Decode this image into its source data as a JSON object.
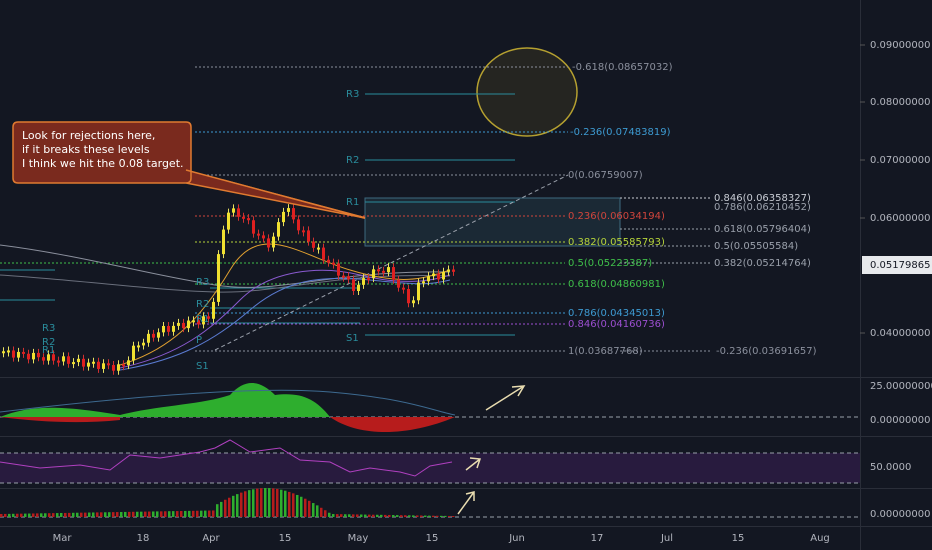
{
  "annotation": {
    "lines": [
      "Look for rejections here,",
      "if it breaks these levels",
      "I think we hit the 0.08 target."
    ]
  },
  "price_axis": {
    "labels": [
      "0.09000000",
      "0.08000000",
      "0.07000000",
      "0.06000000",
      "0.04000000"
    ],
    "last_price": "0.05179865"
  },
  "levels": [
    {
      "text": "-0.618(0.08657032)",
      "color": "#8a8f9c"
    },
    {
      "text": "R3",
      "color": "#2a8c9c"
    },
    {
      "text": "-0.236(0.07483819)",
      "color": "#3d9ad1"
    },
    {
      "text": "R2",
      "color": "#2a8c9c"
    },
    {
      "text": "0(0.06759007)",
      "color": "#8a8f9c"
    },
    {
      "text": "R1",
      "color": "#2a8c9c"
    },
    {
      "text": "0.846(0.06358327)",
      "color": "#c8ccd4"
    },
    {
      "text": "0.786(0.06210452)",
      "color": "#9aa0ab"
    },
    {
      "text": "0.236(0.06034194)",
      "color": "#d0453c"
    },
    {
      "text": "0.618(0.05796404)",
      "color": "#9aa0ab"
    },
    {
      "text": "0.382(0.05585793)",
      "color": "#b5d33a"
    },
    {
      "text": "0.5(0.05505584)",
      "color": "#9aa0ab"
    },
    {
      "text": "0.5(0.05223387)",
      "color": "#3fbf4a"
    },
    {
      "text": "0.382(0.05214764)",
      "color": "#9aa0ab"
    },
    {
      "text": "0.618(0.04860981)",
      "color": "#3fbf4a"
    },
    {
      "text": "0.786(0.04345013)",
      "color": "#3d9ad1"
    },
    {
      "text": "0.846(0.04160736)",
      "color": "#9c4fd1"
    },
    {
      "text": "S1",
      "color": "#2a8c9c"
    },
    {
      "text": "1(0.03687768)",
      "color": "#8a8f9c"
    },
    {
      "text": "-0.236(0.03691657)",
      "color": "#8a8f9c"
    },
    {
      "text": "R3",
      "color": "#2a8c9c"
    },
    {
      "text": "R2",
      "color": "#2a8c9c"
    },
    {
      "text": "R1",
      "color": "#2a8c9c"
    },
    {
      "text": "P",
      "color": "#2a8c9c"
    },
    {
      "text": "S1",
      "color": "#2a8c9c"
    },
    {
      "text": "R3",
      "color": "#2a8c9c"
    },
    {
      "text": "R2",
      "color": "#2a8c9c"
    },
    {
      "text": "R1",
      "color": "#2a8c9c"
    }
  ],
  "indicator_axes": [
    "25.00000000",
    "0.00000000",
    "50.0000",
    "0.00000000"
  ],
  "time_axis": [
    "Mar",
    "18",
    "Apr",
    "15",
    "May",
    "15",
    "Jun",
    "17",
    "Jul",
    "15",
    "Aug"
  ]
}
